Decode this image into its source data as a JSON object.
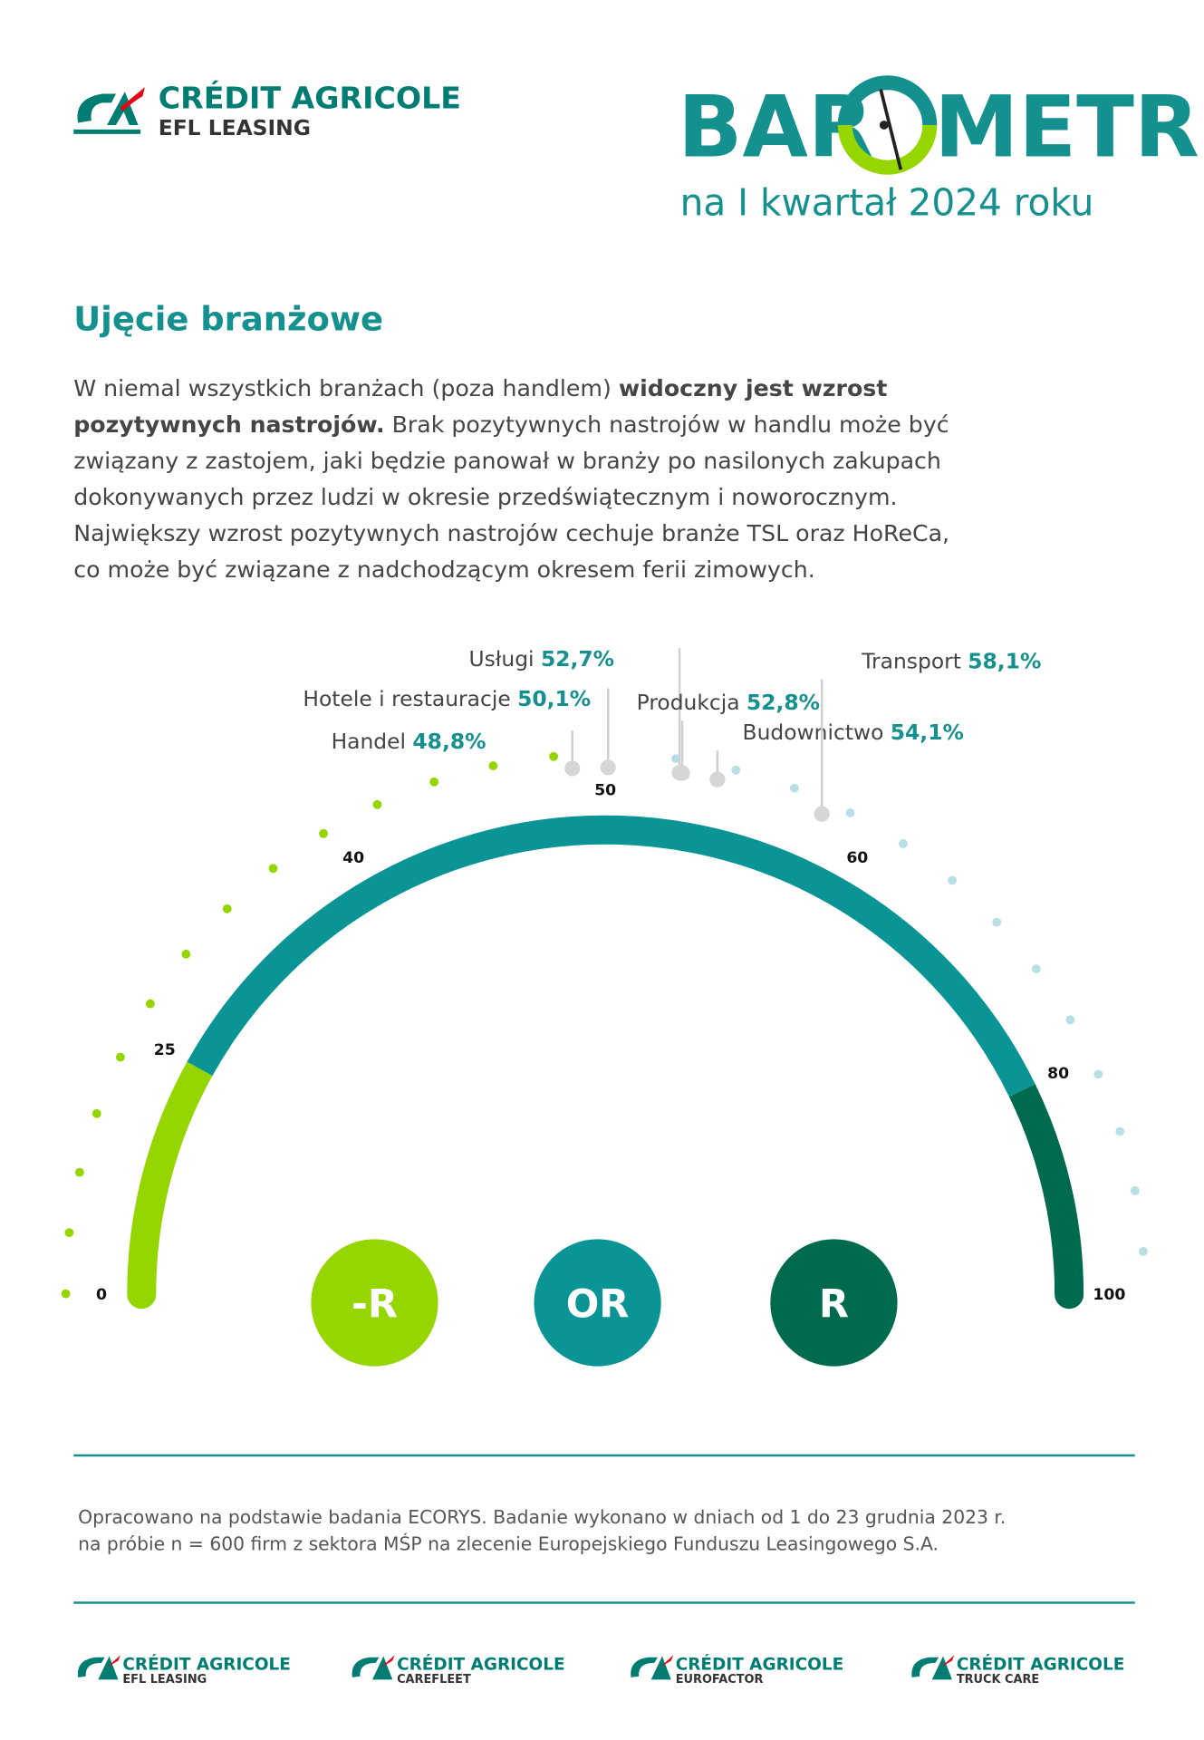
{
  "header": {
    "logo_line1": "CRÉDIT AGRICOLE",
    "logo_line2": "EFL LEASING",
    "title_left": "BAR",
    "title_right": "METR",
    "subtitle": "na I kwartał 2024 roku"
  },
  "section_title": "Ujęcie branżowe",
  "paragraph": [
    [
      {
        "text": "W niemal wszystkich branżach (poza handlem) ",
        "bold": false
      },
      {
        "text": "widoczny jest wzrost",
        "bold": true
      }
    ],
    [
      {
        "text": "pozytywnych nastrojów.",
        "bold": true
      },
      {
        "text": " Brak pozytywnych nastrojów w handlu może być",
        "bold": false
      }
    ],
    [
      {
        "text": "związany z zastojem, jaki będzie panował w branży po nasilonych zakupach",
        "bold": false
      }
    ],
    [
      {
        "text": "dokonywanych przez ludzi w okresie przedświątecznym i noworocznym.",
        "bold": false
      }
    ],
    [
      {
        "text": "Największy wzrost pozytywnych nastrojów cechuje branże TSL oraz HoReCa,",
        "bold": false
      }
    ],
    [
      {
        "text": "co może być związane z nadchodzącym okresem ferii zimowych.",
        "bold": false
      }
    ]
  ],
  "chart_data": {
    "type": "gauge",
    "xlim": [
      0,
      100
    ],
    "xticks": [
      0,
      25,
      40,
      50,
      60,
      80,
      100
    ],
    "categories": [
      "Handel",
      "Hotele i restauracje",
      "Usługi",
      "Produkcja",
      "Budownictwo",
      "Transport"
    ],
    "values": [
      48.8,
      50.1,
      52.7,
      52.8,
      54.1,
      58.1
    ],
    "value_labels": [
      "48,8%",
      "50,1%",
      "52,7%",
      "52,8%",
      "54,1%",
      "58,1%"
    ],
    "point_color": "#d6d6d6",
    "value_color": "#14908f",
    "zones": [
      {
        "label": "-R",
        "from": 0,
        "to": 25,
        "color": "#95d600"
      },
      {
        "label": "OR",
        "from": 25,
        "to": 80,
        "color": "#0b9495"
      },
      {
        "label": "R",
        "from": 80,
        "to": 100,
        "color": "#006a4e"
      }
    ]
  },
  "footer": {
    "note": [
      "Opracowano na podstawie badania ECORYS. Badanie wykonano w dniach od 1 do 23 grudnia 2023 r.",
      "na próbie n = 600 firm z sektora MŚP na zlecenie Europejskiego Funduszu Leasingowego S.A."
    ],
    "brands": [
      {
        "line1": "CRÉDIT AGRICOLE",
        "line2": "EFL LEASING"
      },
      {
        "line1": "CRÉDIT AGRICOLE",
        "line2": "CAREFLEET"
      },
      {
        "line1": "CRÉDIT AGRICOLE",
        "line2": "EUROFACTOR"
      },
      {
        "line1": "CRÉDIT AGRICOLE",
        "line2": "TRUCK CARE"
      }
    ]
  }
}
